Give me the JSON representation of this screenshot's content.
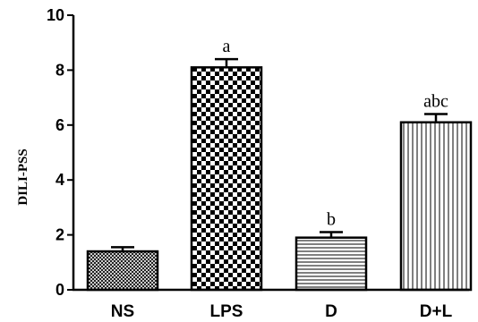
{
  "chart_data": {
    "type": "bar",
    "title": "",
    "xlabel": "",
    "ylabel": "DILI-PSS",
    "ylim": [
      0,
      10
    ],
    "yticks": [
      "0",
      "2",
      "4",
      "6",
      "8",
      "10"
    ],
    "categories": [
      "NS",
      "LPS",
      "D",
      "D+L"
    ],
    "values": [
      1.4,
      8.1,
      1.9,
      6.1
    ],
    "errors": [
      0.15,
      0.3,
      0.2,
      0.3
    ],
    "annotations": [
      "",
      "a",
      "b",
      "abc"
    ],
    "patterns": [
      "crosshatch",
      "checkerboard",
      "horizontal-lines",
      "vertical-lines"
    ],
    "grid": false,
    "legend": "none",
    "bar_color": "#000000",
    "background": "#ffffff"
  }
}
